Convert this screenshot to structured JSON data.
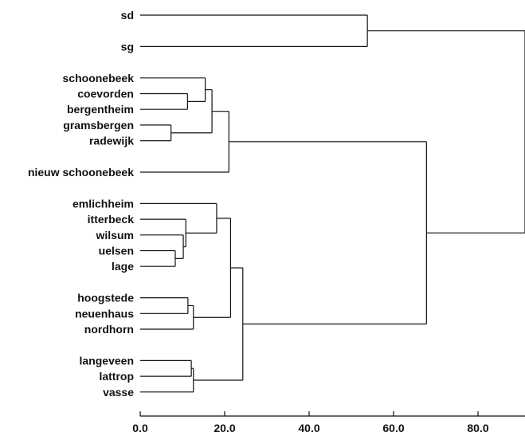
{
  "chart_data": {
    "type": "dendrogram",
    "title": "",
    "xlabel": "",
    "ylabel": "",
    "xlim": [
      0,
      92
    ],
    "x_ticks": [
      "0.0",
      "20.0",
      "40.0",
      "60.0",
      "80.0"
    ],
    "x_tick_values": [
      0,
      20,
      40,
      60,
      80
    ],
    "leaves": [
      {
        "id": "sd",
        "label": "sd",
        "row": 0
      },
      {
        "id": "sg",
        "label": "sg",
        "row": 2
      },
      {
        "id": "schoonebeek",
        "label": "schoonebeek",
        "row": 4
      },
      {
        "id": "coevorden",
        "label": "coevorden",
        "row": 5
      },
      {
        "id": "bergentheim",
        "label": "bergentheim",
        "row": 6
      },
      {
        "id": "gramsbergen",
        "label": "gramsbergen",
        "row": 7
      },
      {
        "id": "radewijk",
        "label": "radewijk",
        "row": 8
      },
      {
        "id": "nieuw_schoonebeek",
        "label": "nieuw schoonebeek",
        "row": 10
      },
      {
        "id": "emlichheim",
        "label": "emlichheim",
        "row": 12
      },
      {
        "id": "itterbeck",
        "label": "itterbeck",
        "row": 13
      },
      {
        "id": "wilsum",
        "label": "wilsum",
        "row": 14
      },
      {
        "id": "uelsen",
        "label": "uelsen",
        "row": 15
      },
      {
        "id": "lage",
        "label": "lage",
        "row": 16
      },
      {
        "id": "hoogstede",
        "label": "hoogstede",
        "row": 18
      },
      {
        "id": "neuenhaus",
        "label": "neuenhaus",
        "row": 19
      },
      {
        "id": "nordhorn",
        "label": "nordhorn",
        "row": 20
      },
      {
        "id": "langeveen",
        "label": "langeveen",
        "row": 22
      },
      {
        "id": "lattrop",
        "label": "lattrop",
        "row": 23
      },
      {
        "id": "vasse",
        "label": "vasse",
        "row": 24
      }
    ],
    "merges": [
      {
        "id": "m_sd_sg",
        "children": [
          "sd",
          "sg"
        ],
        "height": 53.8
      },
      {
        "id": "m_coe_berg",
        "children": [
          "coevorden",
          "bergentheim"
        ],
        "height": 11.2
      },
      {
        "id": "m_schoon",
        "children": [
          "schoonebeek",
          "m_coe_berg"
        ],
        "height": 15.4
      },
      {
        "id": "m_gram_rade",
        "children": [
          "gramsbergen",
          "radewijk"
        ],
        "height": 7.3
      },
      {
        "id": "m_g1",
        "children": [
          "m_schoon",
          "m_gram_rade"
        ],
        "height": 17.0
      },
      {
        "id": "m_g1n",
        "children": [
          "m_g1",
          "nieuw_schoonebeek"
        ],
        "height": 21.0
      },
      {
        "id": "m_uel_lage",
        "children": [
          "uelsen",
          "lage"
        ],
        "height": 8.3
      },
      {
        "id": "m_wils",
        "children": [
          "wilsum",
          "m_uel_lage"
        ],
        "height": 10.2
      },
      {
        "id": "m_itt",
        "children": [
          "itterbeck",
          "m_wils"
        ],
        "height": 10.8
      },
      {
        "id": "m_eml",
        "children": [
          "emlichheim",
          "m_itt"
        ],
        "height": 18.1
      },
      {
        "id": "m_hoog_neu",
        "children": [
          "hoogstede",
          "neuenhaus"
        ],
        "height": 11.3
      },
      {
        "id": "m_nord",
        "children": [
          "m_hoog_neu",
          "nordhorn"
        ],
        "height": 12.6
      },
      {
        "id": "m_em_hn",
        "children": [
          "m_eml",
          "m_nord"
        ],
        "height": 21.4
      },
      {
        "id": "m_lang_lat",
        "children": [
          "langeveen",
          "lattrop"
        ],
        "height": 12.1
      },
      {
        "id": "m_vasse",
        "children": [
          "m_lang_lat",
          "vasse"
        ],
        "height": 12.6
      },
      {
        "id": "m_south",
        "children": [
          "m_em_hn",
          "m_vasse"
        ],
        "height": 24.3
      },
      {
        "id": "m_big",
        "children": [
          "m_g1n",
          "m_south"
        ],
        "height": 67.8
      },
      {
        "id": "m_root",
        "children": [
          "m_sd_sg",
          "m_big"
        ],
        "height": 92.0
      }
    ]
  }
}
